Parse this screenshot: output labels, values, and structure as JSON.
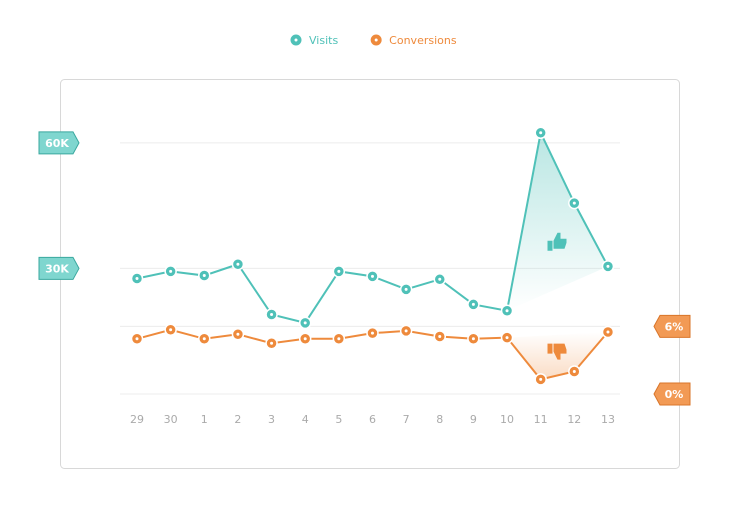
{
  "chart_data": {
    "type": "line",
    "categories": [
      "29",
      "30",
      "1",
      "2",
      "3",
      "4",
      "5",
      "6",
      "7",
      "8",
      "9",
      "10",
      "11",
      "12",
      "13"
    ],
    "series": [
      {
        "name": "Visits",
        "color": "#4fc1b8",
        "values": [
          27600,
          29300,
          28300,
          31000,
          19000,
          17000,
          29300,
          28100,
          25000,
          27400,
          21400,
          19900,
          62400,
          45600,
          30500
        ]
      },
      {
        "name": "Conversions",
        "color": "#ee8a3c",
        "axis": "y2",
        "values": [
          4.9,
          5.7,
          4.9,
          5.3,
          4.5,
          4.9,
          4.9,
          5.4,
          5.6,
          5.1,
          4.9,
          5.0,
          1.3,
          2.0,
          5.5
        ]
      }
    ],
    "ylim": [
      0,
      70000
    ],
    "yticks": [
      {
        "value": 30000,
        "label": "30K"
      },
      {
        "value": 60000,
        "label": "60K"
      }
    ],
    "y2lim": [
      0,
      26
    ],
    "y2ticks": [
      {
        "value": 0,
        "label": "0%"
      },
      {
        "value": 6,
        "label": "6%"
      }
    ],
    "grid": true
  }
}
